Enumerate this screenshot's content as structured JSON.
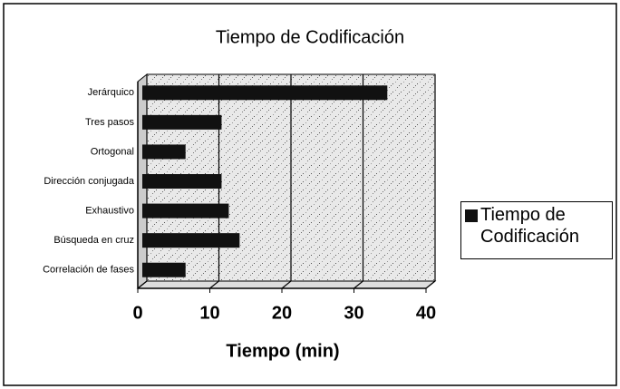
{
  "chart_data": {
    "type": "bar",
    "orientation": "horizontal",
    "title": "Tiempo de Codificación",
    "xlabel": "Tiempo (min)",
    "categories": [
      "Jerárquico",
      "Tres pasos",
      "Ortogonal",
      "Dirección conjugada",
      "Exhaustivo",
      "Búsqueda en cruz",
      "Correlación de fases"
    ],
    "series": [
      {
        "name": "Tiempo de Codificación",
        "color": "#111111",
        "values": [
          34,
          11,
          6,
          11,
          12,
          13.5,
          6
        ]
      }
    ],
    "xlim": [
      0,
      40
    ],
    "xticks": [
      0,
      10,
      20,
      30,
      40
    ],
    "grid": true,
    "legend": "right"
  }
}
